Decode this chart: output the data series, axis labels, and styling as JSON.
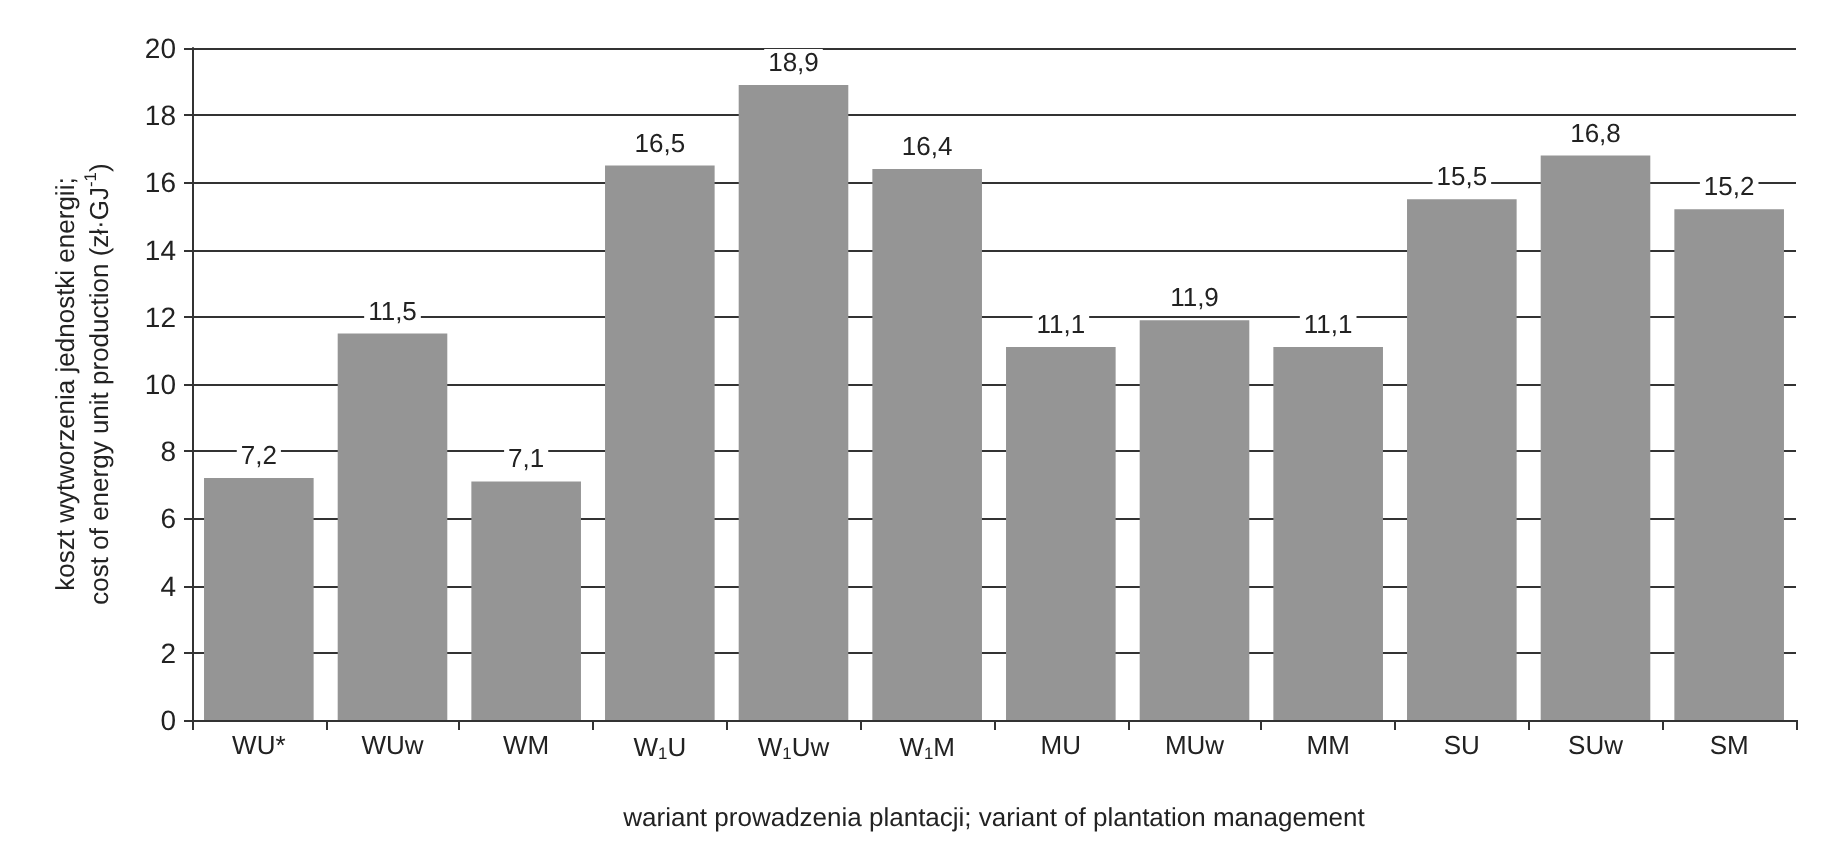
{
  "chart_data": {
    "type": "bar",
    "xlabel": "wariant prowadzenia plantacji; variant of plantation management",
    "ylabel": "koszt wytworzenia jednostki energii;\ncost of energy unit production (zł·GJ$^{-1}$)",
    "categories": [
      "WU*",
      "WUw",
      "WM",
      "W$_{1}$U",
      "W$_{1}$Uw",
      "W$_{1}$M",
      "MU",
      "MUw",
      "MM",
      "SU",
      "SUw",
      "SM"
    ],
    "values": [
      7.2,
      11.5,
      7.1,
      16.5,
      18.9,
      16.4,
      11.1,
      11.9,
      11.1,
      15.5,
      16.8,
      15.2
    ],
    "value_labels": [
      "7,2",
      "11,5",
      "7,1",
      "16,5",
      "18,9",
      "16,4",
      "11,1",
      "11,9",
      "11,1",
      "15,5",
      "16,8",
      "15,2"
    ],
    "color": "#959595",
    "ylim": [
      0,
      20
    ],
    "yticks": [
      0,
      2,
      4,
      6,
      8,
      10,
      12,
      14,
      16,
      18,
      20
    ],
    "grid": "y"
  }
}
